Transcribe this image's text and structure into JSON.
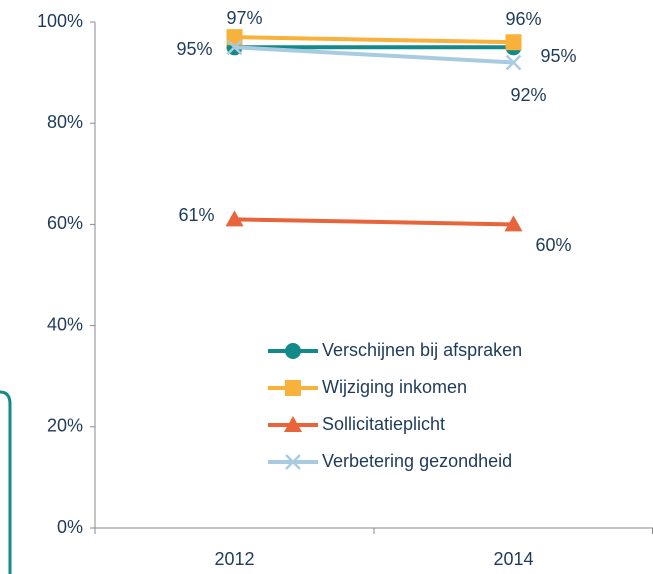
{
  "chart_data": {
    "type": "line",
    "categories": [
      "2012",
      "2014"
    ],
    "series": [
      {
        "name": "Verschijnen bij afspraken",
        "color": "#13898a",
        "marker": "circle",
        "values": [
          95,
          95
        ],
        "value_labels": [
          "95%",
          "95%"
        ]
      },
      {
        "name": "Wijziging inkomen",
        "color": "#f8b13a",
        "marker": "square",
        "values": [
          97,
          96
        ],
        "value_labels": [
          "97%",
          "96%"
        ]
      },
      {
        "name": "Sollicitatieplicht",
        "color": "#e8643a",
        "marker": "triangle",
        "values": [
          61,
          60
        ],
        "value_labels": [
          "61%",
          "60%"
        ]
      },
      {
        "name": "Verbetering gezondheid",
        "color": "#a9cbe0",
        "marker": "x",
        "values": [
          95,
          92
        ],
        "value_labels": [
          null,
          "92%"
        ]
      }
    ],
    "ylim": [
      0,
      100
    ],
    "yticks": [
      {
        "value": 0,
        "label": "0%"
      },
      {
        "value": 20,
        "label": "20%"
      },
      {
        "value": 40,
        "label": "40%"
      },
      {
        "value": 60,
        "label": "60%"
      },
      {
        "value": 80,
        "label": "80%"
      },
      {
        "value": 100,
        "label": "100%"
      }
    ],
    "grid": false
  }
}
